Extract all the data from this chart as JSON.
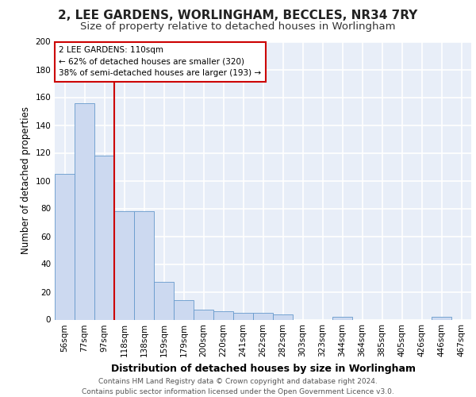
{
  "title": "2, LEE GARDENS, WORLINGHAM, BECCLES, NR34 7RY",
  "subtitle": "Size of property relative to detached houses in Worlingham",
  "xlabel": "Distribution of detached houses by size in Worlingham",
  "ylabel": "Number of detached properties",
  "categories": [
    "56sqm",
    "77sqm",
    "97sqm",
    "118sqm",
    "138sqm",
    "159sqm",
    "179sqm",
    "200sqm",
    "220sqm",
    "241sqm",
    "262sqm",
    "282sqm",
    "303sqm",
    "323sqm",
    "344sqm",
    "364sqm",
    "385sqm",
    "405sqm",
    "426sqm",
    "446sqm",
    "467sqm"
  ],
  "values": [
    105,
    156,
    118,
    78,
    78,
    27,
    14,
    7,
    6,
    5,
    5,
    4,
    0,
    0,
    2,
    0,
    0,
    0,
    0,
    2,
    0
  ],
  "bar_color": "#ccd9f0",
  "bar_edge_color": "#6699cc",
  "highlight_color": "#cc0000",
  "annotation_text": "2 LEE GARDENS: 110sqm\n← 62% of detached houses are smaller (320)\n38% of semi-detached houses are larger (193) →",
  "annotation_box_color": "#ffffff",
  "annotation_box_edge": "#cc0000",
  "ylim": [
    0,
    200
  ],
  "yticks": [
    0,
    20,
    40,
    60,
    80,
    100,
    120,
    140,
    160,
    180,
    200
  ],
  "background_color": "#e8eef8",
  "grid_color": "#ffffff",
  "footer": "Contains HM Land Registry data © Crown copyright and database right 2024.\nContains public sector information licensed under the Open Government Licence v3.0.",
  "title_fontsize": 11,
  "subtitle_fontsize": 9.5,
  "xlabel_fontsize": 9,
  "ylabel_fontsize": 8.5,
  "footer_fontsize": 6.5,
  "tick_fontsize": 7.5
}
